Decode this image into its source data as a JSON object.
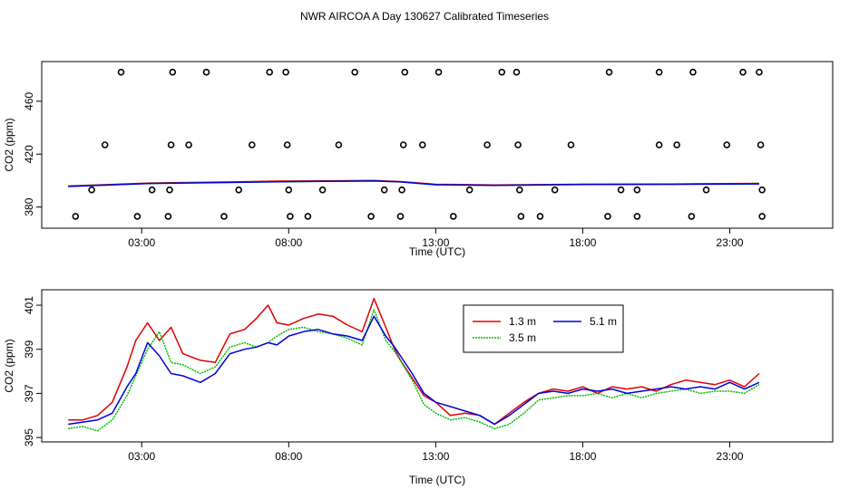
{
  "title": "NWR AIRCOA A  Day 130627  Calibrated Timeseries",
  "colors": {
    "h13": "#e00000",
    "h35": "#00bb00",
    "h51": "#0000dd",
    "axis": "#000000"
  },
  "chart_data": [
    {
      "type": "scatter",
      "title": "",
      "xlabel": "Time (UTC)",
      "ylabel": "CO2 (ppm)",
      "xlim": [
        -0.4,
        26.5
      ],
      "ylim": [
        364,
        490
      ],
      "xticks": [
        3,
        8,
        13,
        18,
        23
      ],
      "xtick_labels": [
        "03:00",
        "08:00",
        "13:00",
        "18:00",
        "23:00"
      ],
      "yticks": [
        380,
        420,
        460
      ],
      "ytick_labels": [
        "380",
        "420",
        "460"
      ],
      "outliers": [
        {
          "t": 2.3,
          "v": 482
        },
        {
          "t": 4.05,
          "v": 482
        },
        {
          "t": 5.2,
          "v": 482
        },
        {
          "t": 7.35,
          "v": 482
        },
        {
          "t": 7.9,
          "v": 482
        },
        {
          "t": 10.25,
          "v": 482
        },
        {
          "t": 11.95,
          "v": 482
        },
        {
          "t": 13.1,
          "v": 482
        },
        {
          "t": 15.25,
          "v": 482
        },
        {
          "t": 15.75,
          "v": 482
        },
        {
          "t": 18.9,
          "v": 482
        },
        {
          "t": 20.6,
          "v": 482
        },
        {
          "t": 21.75,
          "v": 482
        },
        {
          "t": 23.45,
          "v": 482
        },
        {
          "t": 24.0,
          "v": 482
        },
        {
          "t": 1.75,
          "v": 427
        },
        {
          "t": 4.0,
          "v": 427
        },
        {
          "t": 4.6,
          "v": 427
        },
        {
          "t": 6.75,
          "v": 427
        },
        {
          "t": 7.95,
          "v": 427
        },
        {
          "t": 9.7,
          "v": 427
        },
        {
          "t": 11.9,
          "v": 427
        },
        {
          "t": 12.55,
          "v": 427
        },
        {
          "t": 14.75,
          "v": 427
        },
        {
          "t": 15.8,
          "v": 427
        },
        {
          "t": 17.6,
          "v": 427
        },
        {
          "t": 20.6,
          "v": 427
        },
        {
          "t": 21.2,
          "v": 427
        },
        {
          "t": 22.9,
          "v": 427
        },
        {
          "t": 24.05,
          "v": 427
        },
        {
          "t": 1.3,
          "v": 393
        },
        {
          "t": 3.35,
          "v": 393
        },
        {
          "t": 3.95,
          "v": 393
        },
        {
          "t": 6.3,
          "v": 393
        },
        {
          "t": 8.0,
          "v": 393
        },
        {
          "t": 9.15,
          "v": 393
        },
        {
          "t": 11.25,
          "v": 393
        },
        {
          "t": 11.85,
          "v": 393
        },
        {
          "t": 14.15,
          "v": 393
        },
        {
          "t": 15.85,
          "v": 393
        },
        {
          "t": 17.05,
          "v": 393
        },
        {
          "t": 19.3,
          "v": 393
        },
        {
          "t": 19.85,
          "v": 393
        },
        {
          "t": 22.2,
          "v": 393
        },
        {
          "t": 24.1,
          "v": 393
        },
        {
          "t": 0.75,
          "v": 373
        },
        {
          "t": 2.85,
          "v": 373
        },
        {
          "t": 3.9,
          "v": 373
        },
        {
          "t": 5.8,
          "v": 373
        },
        {
          "t": 8.05,
          "v": 373
        },
        {
          "t": 8.65,
          "v": 373
        },
        {
          "t": 10.8,
          "v": 373
        },
        {
          "t": 11.8,
          "v": 373
        },
        {
          "t": 13.6,
          "v": 373
        },
        {
          "t": 15.9,
          "v": 373
        },
        {
          "t": 16.55,
          "v": 373
        },
        {
          "t": 18.85,
          "v": 373
        },
        {
          "t": 19.85,
          "v": 373
        },
        {
          "t": 21.7,
          "v": 373
        },
        {
          "t": 24.1,
          "v": 373
        }
      ],
      "series": [
        {
          "name": "1.3 m",
          "t": [
            0.5,
            3.3,
            6.0,
            7.6,
            9.2,
            10.9,
            11.8,
            13.0,
            15.0,
            18.0,
            21.0,
            24.0
          ],
          "values": [
            395.9,
            398.2,
            399.0,
            399.6,
            399.8,
            400.1,
            399.3,
            397.2,
            396.7,
            397.3,
            397.4,
            397.9
          ]
        },
        {
          "name": "3.5 m",
          "t": [
            0.5,
            3.3,
            6.0,
            7.6,
            9.2,
            10.9,
            11.8,
            13.0,
            15.0,
            18.0,
            21.0,
            24.0
          ],
          "values": [
            395.6,
            397.9,
            398.7,
            399.2,
            399.5,
            399.8,
            399.0,
            396.8,
            396.3,
            397.0,
            397.1,
            397.4
          ]
        },
        {
          "name": "5.1 m",
          "t": [
            0.5,
            3.3,
            6.0,
            7.6,
            9.2,
            10.9,
            11.8,
            13.0,
            15.0,
            18.0,
            21.0,
            24.0
          ],
          "values": [
            395.6,
            397.8,
            398.6,
            399.1,
            399.4,
            399.7,
            399.0,
            396.9,
            396.4,
            397.1,
            397.2,
            397.5
          ]
        }
      ]
    },
    {
      "type": "line",
      "title": "",
      "xlabel": "Time (UTC)",
      "ylabel": "CO2 (ppm)",
      "xlim": [
        -0.4,
        26.5
      ],
      "ylim": [
        394.8,
        401.7
      ],
      "xticks": [
        3,
        8,
        13,
        18,
        23
      ],
      "xtick_labels": [
        "03:00",
        "08:00",
        "13:00",
        "18:00",
        "23:00"
      ],
      "yticks": [
        395,
        397,
        399,
        401
      ],
      "ytick_labels": [
        "395",
        "397",
        "399",
        "401"
      ],
      "legend": "top-center",
      "series": [
        {
          "name": "1.3 m",
          "t": [
            0.5,
            1.0,
            1.5,
            2.0,
            2.5,
            2.8,
            3.2,
            3.6,
            4.0,
            4.4,
            5.0,
            5.5,
            6.0,
            6.5,
            6.9,
            7.3,
            7.6,
            8.0,
            8.5,
            9.0,
            9.5,
            10.0,
            10.5,
            10.9,
            11.3,
            11.6,
            11.8,
            12.2,
            12.6,
            13.0,
            13.5,
            14.0,
            14.5,
            15.0,
            15.5,
            16.0,
            16.5,
            17.0,
            17.5,
            18.0,
            18.5,
            19.0,
            19.5,
            20.0,
            20.5,
            21.0,
            21.5,
            22.0,
            22.5,
            23.0,
            23.5,
            24.0
          ],
          "values": [
            395.8,
            395.8,
            396.0,
            396.6,
            398.2,
            399.4,
            400.2,
            399.4,
            400.0,
            398.8,
            398.5,
            398.4,
            399.7,
            399.9,
            400.4,
            401.0,
            400.2,
            400.1,
            400.4,
            400.6,
            400.5,
            400.1,
            399.8,
            401.3,
            400.0,
            399.0,
            398.5,
            397.7,
            396.9,
            396.6,
            396.0,
            396.1,
            396.0,
            395.6,
            396.1,
            396.6,
            397.0,
            397.2,
            397.1,
            397.3,
            397.0,
            397.3,
            397.2,
            397.3,
            397.1,
            397.4,
            397.6,
            397.5,
            397.4,
            397.6,
            397.3,
            397.9
          ]
        },
        {
          "name": "3.5 m",
          "t": [
            0.5,
            1.0,
            1.5,
            2.0,
            2.5,
            2.8,
            3.2,
            3.6,
            4.0,
            4.4,
            5.0,
            5.5,
            6.0,
            6.5,
            6.9,
            7.3,
            7.6,
            8.0,
            8.5,
            9.0,
            9.5,
            10.0,
            10.5,
            10.9,
            11.3,
            11.6,
            11.8,
            12.2,
            12.6,
            13.0,
            13.5,
            14.0,
            14.5,
            15.0,
            15.5,
            16.0,
            16.5,
            17.0,
            17.5,
            18.0,
            18.5,
            19.0,
            19.5,
            20.0,
            20.5,
            21.0,
            21.5,
            22.0,
            22.5,
            23.0,
            23.5,
            24.0
          ],
          "values": [
            395.4,
            395.5,
            395.3,
            395.8,
            396.9,
            397.8,
            399.0,
            399.8,
            398.4,
            398.3,
            397.9,
            398.2,
            399.1,
            399.3,
            399.1,
            399.3,
            399.6,
            399.9,
            400.0,
            399.8,
            399.7,
            399.5,
            399.2,
            400.8,
            399.4,
            398.9,
            398.5,
            397.6,
            396.5,
            396.1,
            395.8,
            395.9,
            395.7,
            395.4,
            395.6,
            396.1,
            396.7,
            396.8,
            396.9,
            396.9,
            397.0,
            396.8,
            397.0,
            396.8,
            397.0,
            397.1,
            397.2,
            397.0,
            397.1,
            397.1,
            397.0,
            397.4
          ]
        },
        {
          "name": "5.1 m",
          "t": [
            0.5,
            1.0,
            1.5,
            2.0,
            2.5,
            2.8,
            3.2,
            3.6,
            4.0,
            4.4,
            5.0,
            5.5,
            6.0,
            6.5,
            6.9,
            7.3,
            7.6,
            8.0,
            8.5,
            9.0,
            9.5,
            10.0,
            10.5,
            10.9,
            11.3,
            11.6,
            11.8,
            12.2,
            12.6,
            13.0,
            13.5,
            14.0,
            14.5,
            15.0,
            15.5,
            16.0,
            16.5,
            17.0,
            17.5,
            18.0,
            18.5,
            19.0,
            19.5,
            20.0,
            20.5,
            21.0,
            21.5,
            22.0,
            22.5,
            23.0,
            23.5,
            24.0
          ],
          "values": [
            395.6,
            395.7,
            395.8,
            396.1,
            397.3,
            397.9,
            399.3,
            398.7,
            397.9,
            397.8,
            397.5,
            397.9,
            398.8,
            399.0,
            399.1,
            399.3,
            399.2,
            399.6,
            399.8,
            399.9,
            399.7,
            399.6,
            399.4,
            400.5,
            399.6,
            399.1,
            398.7,
            397.9,
            397.0,
            396.6,
            396.4,
            396.2,
            396.0,
            395.6,
            396.0,
            396.5,
            397.0,
            397.1,
            397.0,
            397.2,
            397.1,
            397.2,
            397.0,
            397.1,
            397.2,
            397.3,
            397.2,
            397.3,
            397.2,
            397.5,
            397.2,
            397.5
          ]
        }
      ]
    }
  ]
}
